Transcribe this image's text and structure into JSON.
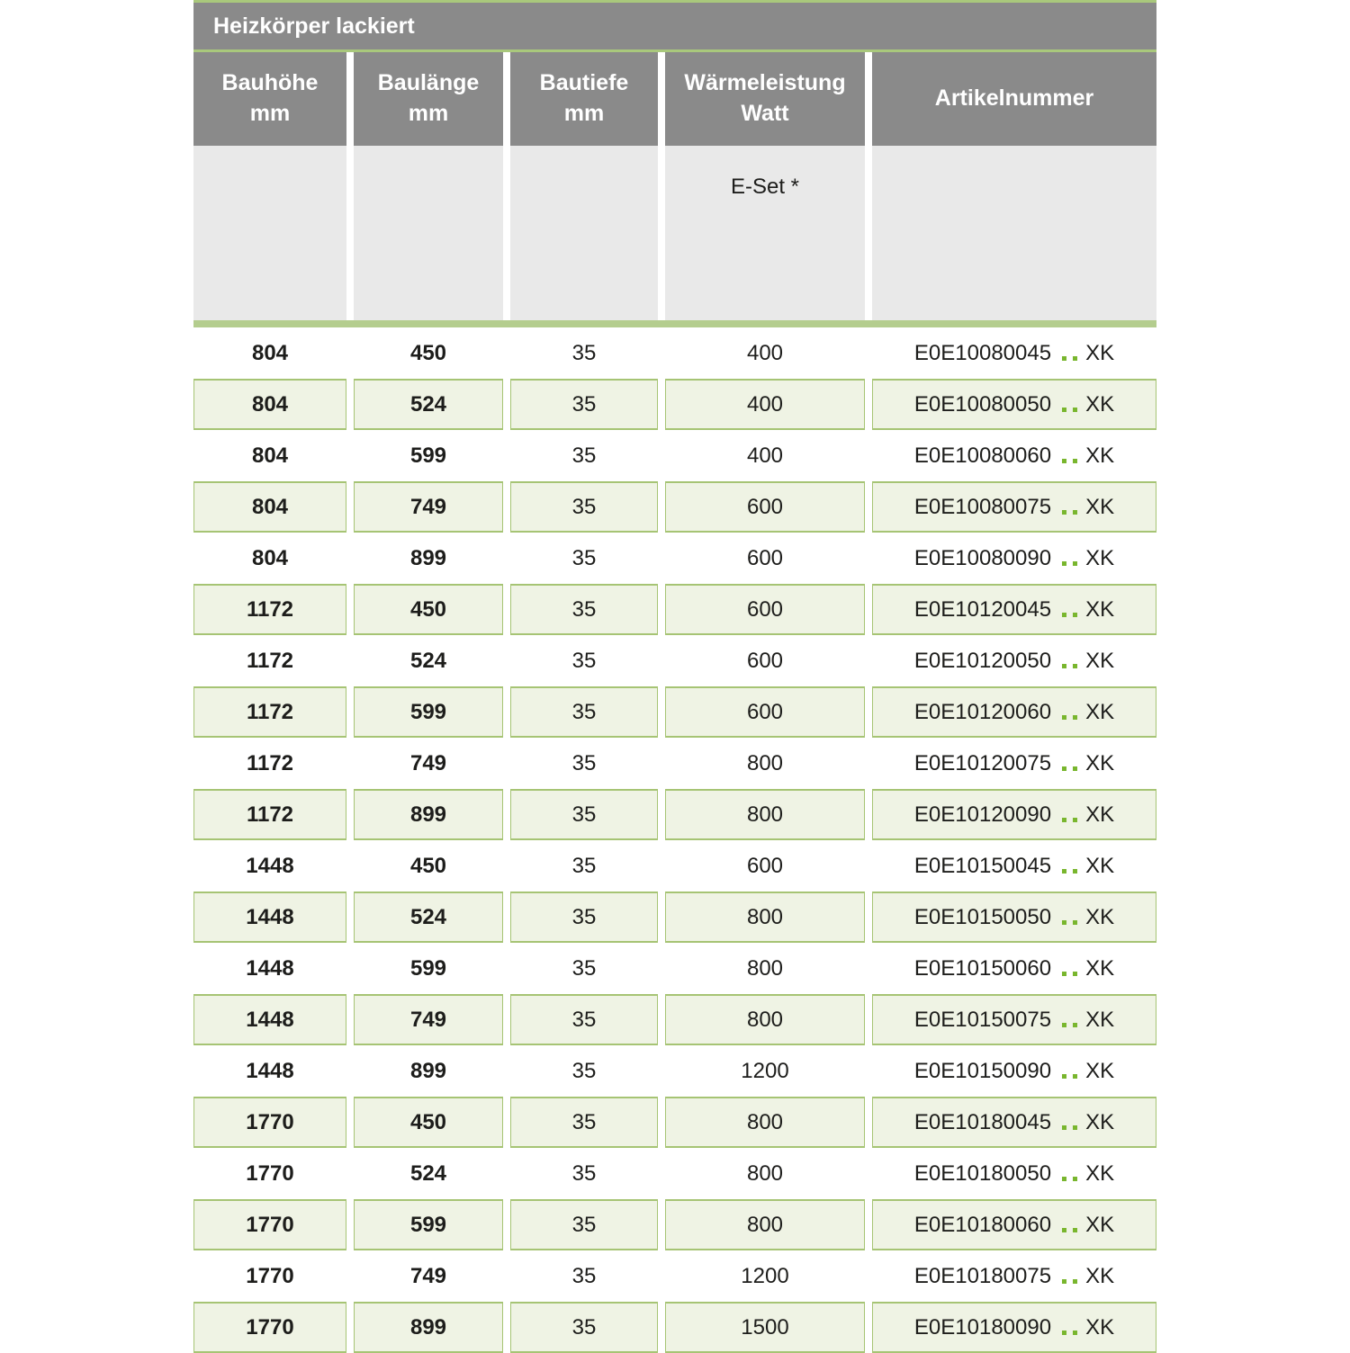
{
  "table": {
    "title": "Heizkörper lackiert",
    "columns": [
      {
        "lines": [
          "Bauhöhe",
          "mm"
        ]
      },
      {
        "lines": [
          "Baulänge",
          "mm"
        ]
      },
      {
        "lines": [
          "Bautiefe",
          "mm"
        ]
      },
      {
        "lines": [
          "Wärmeleistung",
          "Watt"
        ]
      },
      {
        "lines": [
          "Artikelnummer"
        ]
      }
    ],
    "subheader": {
      "eset_label": "E-Set *",
      "eset_column_index": 3
    },
    "artikel_dots": "..",
    "artikel_suffix": "XK",
    "colors": {
      "header_gray": "#8a8a8a",
      "subheader_gray": "#e9e9e9",
      "accent_line_green": "#a9c87c",
      "separator_green": "#b4cd8e",
      "row_green_bg": "#eff3e4",
      "row_green_border": "#a6c474",
      "dot_green": "#79b62e",
      "text": "#1d1d1b"
    },
    "rows": [
      {
        "bauhoehe": "804",
        "baulaenge": "450",
        "bautiefe": "35",
        "watt": "400",
        "artikel": "E0E10080045"
      },
      {
        "bauhoehe": "804",
        "baulaenge": "524",
        "bautiefe": "35",
        "watt": "400",
        "artikel": "E0E10080050"
      },
      {
        "bauhoehe": "804",
        "baulaenge": "599",
        "bautiefe": "35",
        "watt": "400",
        "artikel": "E0E10080060"
      },
      {
        "bauhoehe": "804",
        "baulaenge": "749",
        "bautiefe": "35",
        "watt": "600",
        "artikel": "E0E10080075"
      },
      {
        "bauhoehe": "804",
        "baulaenge": "899",
        "bautiefe": "35",
        "watt": "600",
        "artikel": "E0E10080090"
      },
      {
        "bauhoehe": "1172",
        "baulaenge": "450",
        "bautiefe": "35",
        "watt": "600",
        "artikel": "E0E10120045"
      },
      {
        "bauhoehe": "1172",
        "baulaenge": "524",
        "bautiefe": "35",
        "watt": "600",
        "artikel": "E0E10120050"
      },
      {
        "bauhoehe": "1172",
        "baulaenge": "599",
        "bautiefe": "35",
        "watt": "600",
        "artikel": "E0E10120060"
      },
      {
        "bauhoehe": "1172",
        "baulaenge": "749",
        "bautiefe": "35",
        "watt": "800",
        "artikel": "E0E10120075"
      },
      {
        "bauhoehe": "1172",
        "baulaenge": "899",
        "bautiefe": "35",
        "watt": "800",
        "artikel": "E0E10120090"
      },
      {
        "bauhoehe": "1448",
        "baulaenge": "450",
        "bautiefe": "35",
        "watt": "600",
        "artikel": "E0E10150045"
      },
      {
        "bauhoehe": "1448",
        "baulaenge": "524",
        "bautiefe": "35",
        "watt": "800",
        "artikel": "E0E10150050"
      },
      {
        "bauhoehe": "1448",
        "baulaenge": "599",
        "bautiefe": "35",
        "watt": "800",
        "artikel": "E0E10150060"
      },
      {
        "bauhoehe": "1448",
        "baulaenge": "749",
        "bautiefe": "35",
        "watt": "800",
        "artikel": "E0E10150075"
      },
      {
        "bauhoehe": "1448",
        "baulaenge": "899",
        "bautiefe": "35",
        "watt": "1200",
        "artikel": "E0E10150090"
      },
      {
        "bauhoehe": "1770",
        "baulaenge": "450",
        "bautiefe": "35",
        "watt": "800",
        "artikel": "E0E10180045"
      },
      {
        "bauhoehe": "1770",
        "baulaenge": "524",
        "bautiefe": "35",
        "watt": "800",
        "artikel": "E0E10180050"
      },
      {
        "bauhoehe": "1770",
        "baulaenge": "599",
        "bautiefe": "35",
        "watt": "800",
        "artikel": "E0E10180060"
      },
      {
        "bauhoehe": "1770",
        "baulaenge": "749",
        "bautiefe": "35",
        "watt": "1200",
        "artikel": "E0E10180075"
      },
      {
        "bauhoehe": "1770",
        "baulaenge": "899",
        "bautiefe": "35",
        "watt": "1500",
        "artikel": "E0E10180090"
      }
    ]
  }
}
